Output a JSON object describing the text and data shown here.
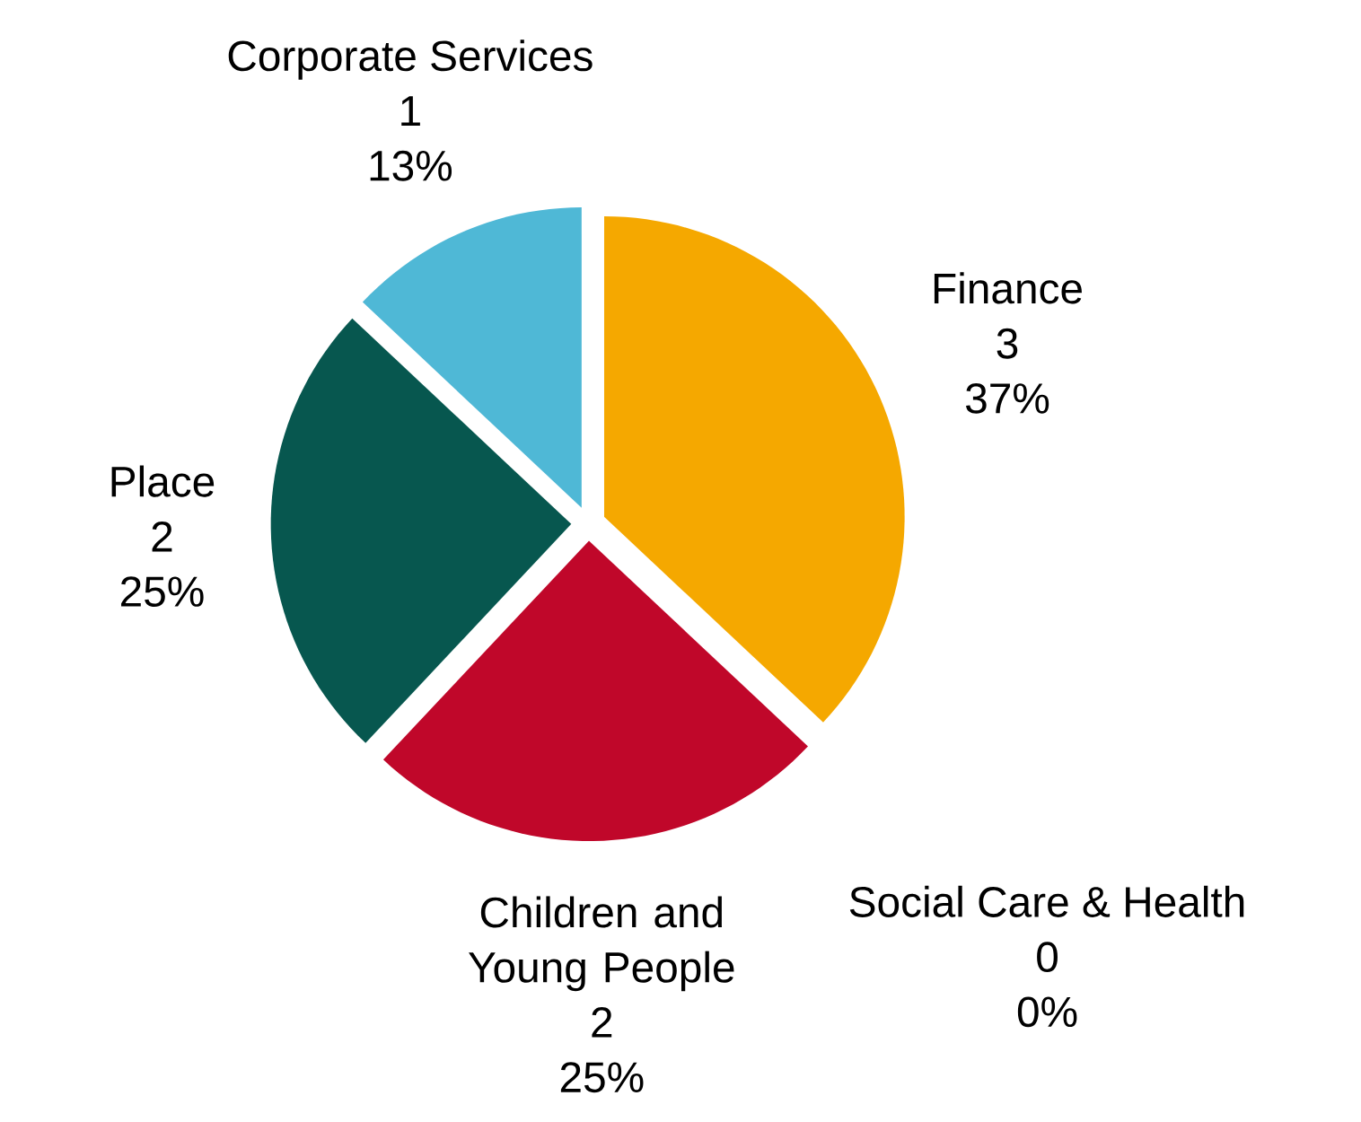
{
  "chart_data": {
    "type": "pie",
    "categories": [
      "Finance",
      "Social Care & Health",
      "Children and Young People",
      "Place",
      "Corporate Services"
    ],
    "values": [
      37,
      0,
      25,
      25,
      13
    ],
    "colors": [
      "#f5a800",
      "#7f7f7f",
      "#c0072a",
      "#07574f",
      "#4fb8d6"
    ],
    "value_labels": [
      "37%",
      "0%",
      "25%",
      "25%",
      "13%"
    ],
    "annotations": [
      "3",
      "0",
      "2",
      "2",
      "1"
    ]
  }
}
